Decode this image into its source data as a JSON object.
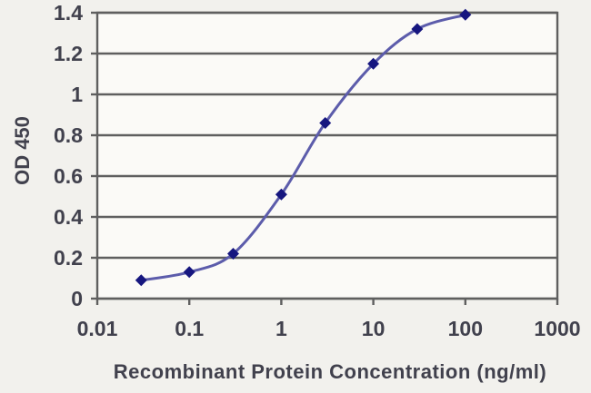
{
  "chart_data": {
    "type": "line",
    "xlabel": "Recombinant Protein Concentration (ng/ml)",
    "ylabel": "OD 450",
    "x_scale": "log",
    "xlim": [
      0.01,
      1000
    ],
    "ylim": [
      0,
      1.4
    ],
    "x_tick_values": [
      0.01,
      0.1,
      1,
      10,
      100,
      1000
    ],
    "x_tick_labels": [
      "0.01",
      "0.1",
      "1",
      "10",
      "100",
      "1000"
    ],
    "y_tick_values": [
      0,
      0.2,
      0.4,
      0.6,
      0.8,
      1,
      1.2,
      1.4
    ],
    "y_tick_labels": [
      "0",
      "0.2",
      "0.4",
      "0.6",
      "0.8",
      "1",
      "1.2",
      "1.4"
    ],
    "grid": "horizontal",
    "legend_position": "none",
    "series": [
      {
        "x": [
          0.03,
          0.1,
          0.3,
          1,
          3,
          10,
          30,
          100
        ],
        "y": [
          0.09,
          0.13,
          0.22,
          0.51,
          0.86,
          1.15,
          1.32,
          1.39
        ],
        "marker": "diamond",
        "line_color": "#5c5cab",
        "marker_color": "#16167f"
      }
    ]
  },
  "colors": {
    "background": "#f2f1ed",
    "plot_background": "#fbfaf7",
    "grid": "#5f5f5f",
    "text": "#41414d"
  }
}
